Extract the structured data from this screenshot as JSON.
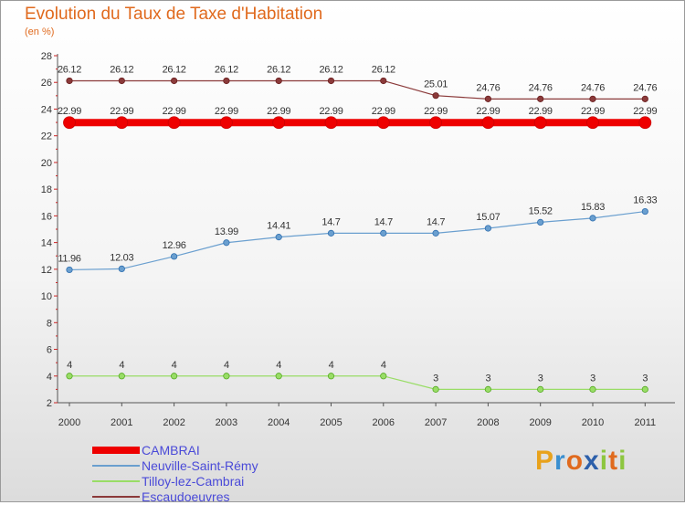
{
  "title": "Evolution du Taux de Taxe d'Habitation",
  "subtitle": "(en %)",
  "brand": {
    "letters": [
      "P",
      "r",
      "o",
      "x",
      "i",
      "t",
      "i"
    ],
    "colors": [
      "#e8a21c",
      "#3a8fd0",
      "#e06a1e",
      "#2c5faa",
      "#8dc63f",
      "#e06a1e",
      "#8dc63f"
    ]
  },
  "chart_data": {
    "type": "line",
    "x": [
      "2000",
      "2001",
      "2002",
      "2003",
      "2004",
      "2005",
      "2006",
      "2007",
      "2008",
      "2009",
      "2010",
      "2011"
    ],
    "ylim": [
      2,
      28
    ],
    "yticks": [
      2,
      4,
      6,
      8,
      10,
      12,
      14,
      16,
      18,
      20,
      22,
      24,
      26,
      28
    ],
    "grid": false,
    "legend_position": "bottom-left",
    "series": [
      {
        "name": "CAMBRAI",
        "color": "#ee0000",
        "values": [
          22.99,
          22.99,
          22.99,
          22.99,
          22.99,
          22.99,
          22.99,
          22.99,
          22.99,
          22.99,
          22.99,
          22.99
        ],
        "labels": [
          "22.99",
          "22.99",
          "22.99",
          "22.99",
          "22.99",
          "22.99",
          "22.99",
          "22.99",
          "22.99",
          "22.99",
          "22.99",
          "22.99"
        ]
      },
      {
        "name": "Neuville-Saint-Rémy",
        "color": "#6a9fcf",
        "values": [
          11.96,
          12.03,
          12.96,
          13.99,
          14.41,
          14.7,
          14.7,
          14.7,
          15.07,
          15.52,
          15.83,
          16.33
        ],
        "labels": [
          "11.96",
          "12.03",
          "12.96",
          "13.99",
          "14.41",
          "14.7",
          "14.7",
          "14.7",
          "15.07",
          "15.52",
          "15.83",
          "16.33"
        ]
      },
      {
        "name": "Tilloy-lez-Cambrai",
        "color": "#99dd66",
        "values": [
          4,
          4,
          4,
          4,
          4,
          4,
          4,
          3,
          3,
          3,
          3,
          3
        ],
        "labels": [
          "4",
          "4",
          "4",
          "4",
          "4",
          "4",
          "4",
          "3",
          "3",
          "3",
          "3",
          "3"
        ]
      },
      {
        "name": "Escaudoeuvres",
        "color": "#8b3a3a",
        "values": [
          26.12,
          26.12,
          26.12,
          26.12,
          26.12,
          26.12,
          26.12,
          25.01,
          24.76,
          24.76,
          24.76,
          24.76
        ],
        "labels": [
          "26.12",
          "26.12",
          "26.12",
          "26.12",
          "26.12",
          "26.12",
          "26.12",
          "25.01",
          "24.76",
          "24.76",
          "24.76",
          "24.76"
        ]
      }
    ]
  }
}
